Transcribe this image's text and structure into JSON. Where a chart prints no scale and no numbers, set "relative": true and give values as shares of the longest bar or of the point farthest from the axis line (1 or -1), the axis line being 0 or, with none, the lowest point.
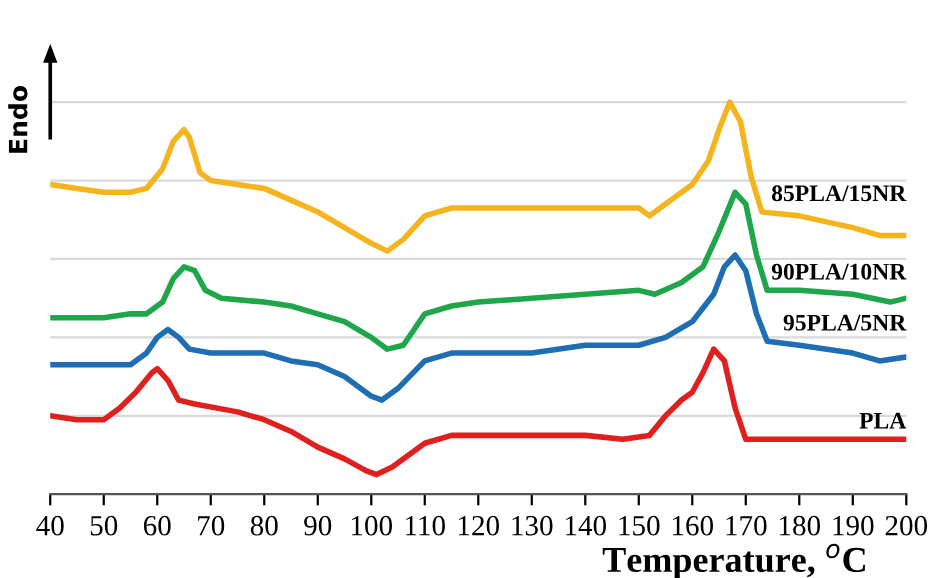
{
  "chart_data": {
    "type": "line",
    "xlabel": "Temperature, $^{o}$C",
    "ylabel": "Endo",
    "relative": true,
    "grid": "y",
    "legend": false,
    "marker": "none",
    "line_style": "solid",
    "xlim": [
      40,
      200
    ],
    "xticks": [
      40,
      50,
      60,
      70,
      80,
      90,
      100,
      110,
      120,
      130,
      140,
      150,
      160,
      170,
      180,
      190,
      200
    ],
    "series": [
      {
        "name": "85PLA/15NR",
        "color": "#f5b41e",
        "x": [
          40,
          45,
          50,
          55,
          58,
          61,
          63,
          65,
          66,
          68,
          70,
          75,
          80,
          85,
          90,
          95,
          100,
          103,
          106,
          110,
          115,
          120,
          130,
          150,
          152,
          155,
          160,
          163,
          165,
          167,
          169,
          171,
          173,
          180,
          190,
          195,
          200
        ],
        "values": [
          0.79,
          0.78,
          0.77,
          0.77,
          0.78,
          0.83,
          0.9,
          0.93,
          0.91,
          0.82,
          0.8,
          0.79,
          0.78,
          0.75,
          0.72,
          0.68,
          0.64,
          0.62,
          0.65,
          0.71,
          0.73,
          0.73,
          0.73,
          0.73,
          0.71,
          0.74,
          0.79,
          0.85,
          0.93,
          1.0,
          0.95,
          0.81,
          0.72,
          0.71,
          0.68,
          0.66,
          0.66
        ]
      },
      {
        "name": "90PLA/10NR",
        "color": "#1fa64a",
        "x": [
          40,
          50,
          55,
          58,
          61,
          63,
          65,
          67,
          69,
          72,
          80,
          85,
          90,
          95,
          100,
          103,
          106,
          110,
          115,
          120,
          140,
          150,
          153,
          158,
          162,
          165,
          168,
          170,
          172,
          174,
          180,
          190,
          197,
          200
        ],
        "values": [
          0.45,
          0.45,
          0.46,
          0.46,
          0.49,
          0.55,
          0.58,
          0.57,
          0.52,
          0.5,
          0.49,
          0.48,
          0.46,
          0.44,
          0.4,
          0.37,
          0.38,
          0.46,
          0.48,
          0.49,
          0.51,
          0.52,
          0.51,
          0.54,
          0.58,
          0.67,
          0.77,
          0.74,
          0.61,
          0.52,
          0.52,
          0.51,
          0.49,
          0.5
        ]
      },
      {
        "name": "95PLA/5NR",
        "color": "#1f6db3",
        "x": [
          40,
          50,
          55,
          58,
          60,
          62,
          64,
          66,
          70,
          80,
          85,
          90,
          95,
          100,
          102,
          105,
          110,
          115,
          120,
          130,
          140,
          150,
          155,
          160,
          164,
          166,
          168,
          170,
          172,
          174,
          180,
          190,
          195,
          200
        ],
        "values": [
          0.33,
          0.33,
          0.33,
          0.36,
          0.4,
          0.42,
          0.4,
          0.37,
          0.36,
          0.36,
          0.34,
          0.33,
          0.3,
          0.25,
          0.24,
          0.27,
          0.34,
          0.36,
          0.36,
          0.36,
          0.38,
          0.38,
          0.4,
          0.44,
          0.51,
          0.58,
          0.61,
          0.57,
          0.46,
          0.39,
          0.38,
          0.36,
          0.34,
          0.35
        ]
      },
      {
        "name": "PLA",
        "color": "#e0201f",
        "x": [
          40,
          45,
          50,
          53,
          56,
          59,
          60,
          62,
          64,
          67,
          75,
          80,
          85,
          90,
          95,
          99,
          101,
          104,
          107,
          110,
          115,
          120,
          140,
          147,
          152,
          155,
          158,
          160,
          162,
          164,
          166,
          168,
          170,
          175,
          200
        ],
        "values": [
          0.2,
          0.19,
          0.19,
          0.22,
          0.26,
          0.31,
          0.32,
          0.29,
          0.24,
          0.23,
          0.21,
          0.19,
          0.16,
          0.12,
          0.09,
          0.06,
          0.05,
          0.07,
          0.1,
          0.13,
          0.15,
          0.15,
          0.15,
          0.14,
          0.15,
          0.2,
          0.24,
          0.26,
          0.31,
          0.37,
          0.34,
          0.22,
          0.14,
          0.14,
          0.14
        ]
      }
    ]
  }
}
